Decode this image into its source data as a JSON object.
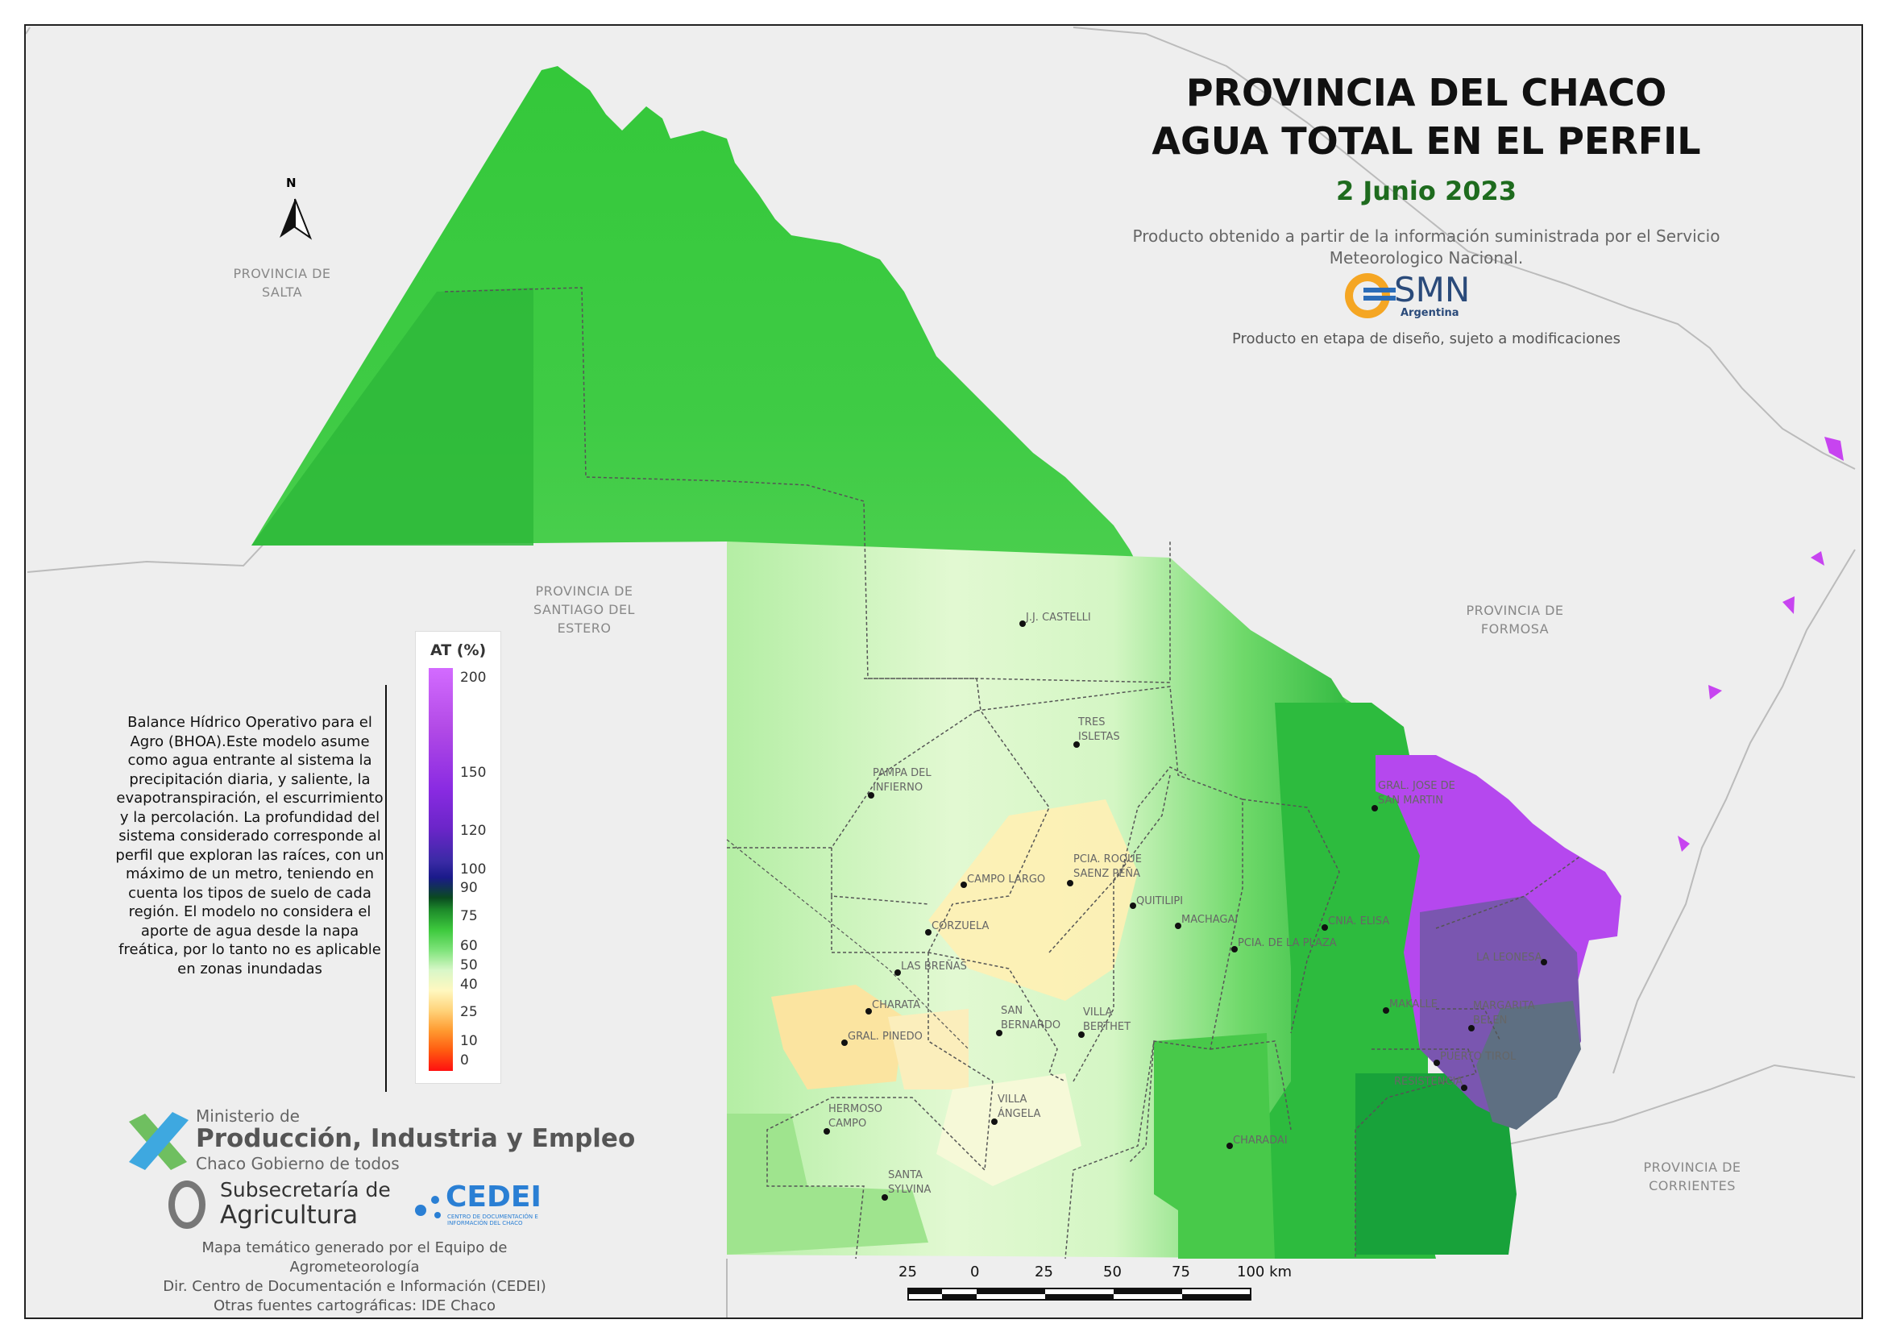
{
  "title_line1": "PROVINCIA DEL CHACO",
  "title_line2": "AGUA TOTAL EN EL PERFIL",
  "date": "2 Junio 2023",
  "source_text": "Producto obtenido a partir de la información suministrada por el Servicio Meteorologico Nacional.",
  "smn_logo": {
    "name": "SMN",
    "sub": "Argentina"
  },
  "disclaimer": "Producto en etapa de diseño, sujeto a modificaciones",
  "north_label": "N",
  "provinces": {
    "salta": "PROVINCIA DE SALTA",
    "santiago": "PROVINCIA DE SANTIAGO DEL ESTERO",
    "formosa": "PROVINCIA DE FORMOSA",
    "corrientes": "PROVINCIA DE CORRIENTES"
  },
  "cities": [
    "J.J. CASTELLI",
    "TRES ISLETAS",
    "PAMPA DEL INFIERNO",
    "GRAL. JOSE DE SAN MARTIN",
    "CAMPO LARGO",
    "PCIA. ROQUE SAENZ PEÑA",
    "QUITILIPI",
    "MACHAGAI",
    "CNIA. ELISA",
    "PCIA. DE LA PLAZA",
    "CORZUELA",
    "LAS BREÑAS",
    "LA LEONESA",
    "CHARATA",
    "SAN BERNARDO",
    "VILLA BERTHET",
    "MARGARITA BELEN",
    "GRAL. PINEDO",
    "MAKALLE",
    "PUERTO TIROL",
    "RESISTENCIA",
    "HERMOSO CAMPO",
    "VILLA ÁNGELA",
    "CHARADAI",
    "SANTA SYLVINA"
  ],
  "legend": {
    "title": "AT (%)",
    "ticks": [
      "200",
      "150",
      "120",
      "100",
      "90",
      "75",
      "60",
      "50",
      "40",
      "25",
      "10",
      "0"
    ]
  },
  "description": "Balance Hídrico Operativo para el Agro (BHOA).Este modelo asume como agua entrante al sistema la precipitación diaria, y saliente, la evapotranspiración, el escurrimiento y la percolación. La profundidad del sistema considerado corresponde al perfil que exploran las raíces, con un máximo de un metro, teniendo en cuenta los tipos de suelo de cada región. El modelo no considera el aporte de agua desde la napa freática, por lo tanto no es aplicable en zonas inundadas",
  "logos": {
    "ministerio_line1": "Ministerio de",
    "ministerio_line2": "Producción, Industria y Empleo",
    "ministerio_line3": "Chaco Gobierno de todos",
    "subsecretaria_line1": "Subsecretaría de",
    "subsecretaria_line2": "Agricultura",
    "cedei": "CEDEI",
    "cedei_sub": "CENTRO DE DOCUMENTACIÓN E INFORMACIÓN DEL CHACO"
  },
  "credits": [
    "Mapa temático generado por el Equipo de Agrometeorología",
    "Dir. Centro de Documentación e Información (CEDEI)",
    "Otras fuentes cartográficas: IDE Chaco"
  ],
  "scale": {
    "labels": [
      "25",
      "0",
      "25",
      "50",
      "75",
      "100 km"
    ]
  },
  "colors": {
    "dark_green": "#1e9e34",
    "green": "#3cc93c",
    "light_green": "#c8f5b8",
    "pale_yellow": "#fff4c0",
    "yellow": "#fbe7a4",
    "purple": "#b648f0",
    "slate": "#5a7080"
  }
}
